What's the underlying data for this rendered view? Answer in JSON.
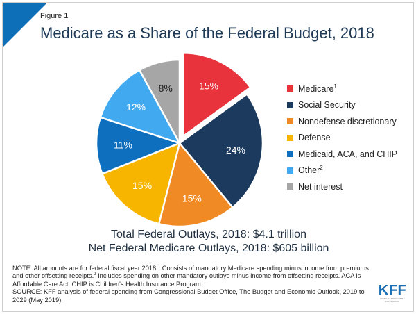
{
  "figure_label": "Figure 1",
  "title": "Medicare as a Share of the Federal Budget, 2018",
  "totals": {
    "line1": "Total Federal Outlays, 2018: $4.1 trillion",
    "line2": "Net Federal Medicare Outlays, 2018: $605 billion"
  },
  "note": {
    "part1": "NOTE: All amounts are for federal fiscal year 2018.",
    "sup1": "1",
    "part2": " Consists of mandatory Medicare spending minus income from premiums and other offsetting receipts.",
    "sup2": "2",
    "part3": " Includes spending on other mandatory outlays minus income from offsetting receipts. ACA is Affordable Care Act. CHIP is Children's Health Insurance Program.",
    "source": "SOURCE: KFF analysis of federal spending from Congressional Budget Office, The Budget and Economic Outlook, 2019 to 2029 (May 2019)."
  },
  "logo": {
    "text": "KFF",
    "sub": "HENRY J KAISER FAMILY FOUNDATION"
  },
  "colors": {
    "accent": "#0d6fb8",
    "title": "#1f3a57"
  },
  "chart_data": {
    "type": "pie",
    "title": "Medicare as a Share of the Federal Budget, 2018",
    "legend_position": "right",
    "exploded_slice": "Medicare",
    "slices": [
      {
        "name": "Medicare",
        "sup": "1",
        "value": 15,
        "label": "15%",
        "color": "#e8323c"
      },
      {
        "name": "Social Security",
        "sup": "",
        "value": 24,
        "label": "24%",
        "color": "#1c3a5e"
      },
      {
        "name": "Nondefense discretionary",
        "sup": "",
        "value": 15,
        "label": "15%",
        "color": "#f08a24"
      },
      {
        "name": "Defense",
        "sup": "",
        "value": 15,
        "label": "15%",
        "color": "#f7b500"
      },
      {
        "name": "Medicaid, ACA, and CHIP",
        "sup": "",
        "value": 11,
        "label": "11%",
        "color": "#0f6fbf"
      },
      {
        "name": "Other",
        "sup": "2",
        "value": 12,
        "label": "12%",
        "color": "#41a9f0"
      },
      {
        "name": "Net interest",
        "sup": "",
        "value": 8,
        "label": "8%",
        "color": "#a6a6a6"
      }
    ]
  }
}
